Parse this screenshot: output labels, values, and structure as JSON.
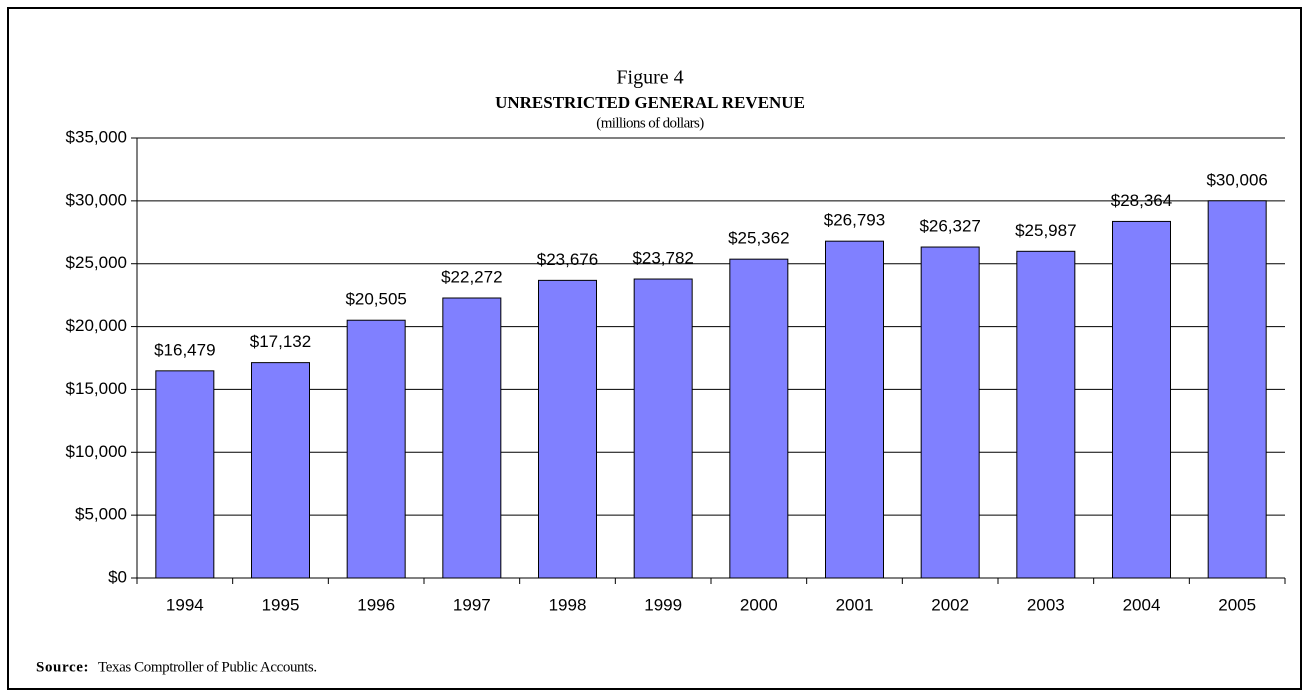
{
  "chart_data": {
    "type": "bar",
    "supertitle": "Figure 4",
    "title": "UNRESTRICTED GENERAL REVENUE",
    "subtitle": "(millions of dollars)",
    "categories": [
      "1994",
      "1995",
      "1996",
      "1997",
      "1998",
      "1999",
      "2000",
      "2001",
      "2002",
      "2003",
      "2004",
      "2005"
    ],
    "values": [
      16479,
      17132,
      20505,
      22272,
      23676,
      23782,
      25362,
      26793,
      26327,
      25987,
      28364,
      30006
    ],
    "value_labels": [
      "$16,479",
      "$17,132",
      "$20,505",
      "$22,272",
      "$23,676",
      "$23,782",
      "$25,362",
      "$26,793",
      "$26,327",
      "$25,987",
      "$28,364",
      "$30,006"
    ],
    "color": "#8080ff",
    "ylim": [
      0,
      35000
    ],
    "yticks": [
      {
        "value": 0,
        "label": "$0"
      },
      {
        "value": 5000,
        "label": "$5,000"
      },
      {
        "value": 10000,
        "label": "$10,000"
      },
      {
        "value": 15000,
        "label": "$15,000"
      },
      {
        "value": 20000,
        "label": "$20,000"
      },
      {
        "value": 25000,
        "label": "$25,000"
      },
      {
        "value": 30000,
        "label": "$30,000"
      },
      {
        "value": 35000,
        "label": "$35,000"
      }
    ],
    "grid": true,
    "source_label": "Source:",
    "source_text": "Texas Comptroller of Public Accounts."
  }
}
